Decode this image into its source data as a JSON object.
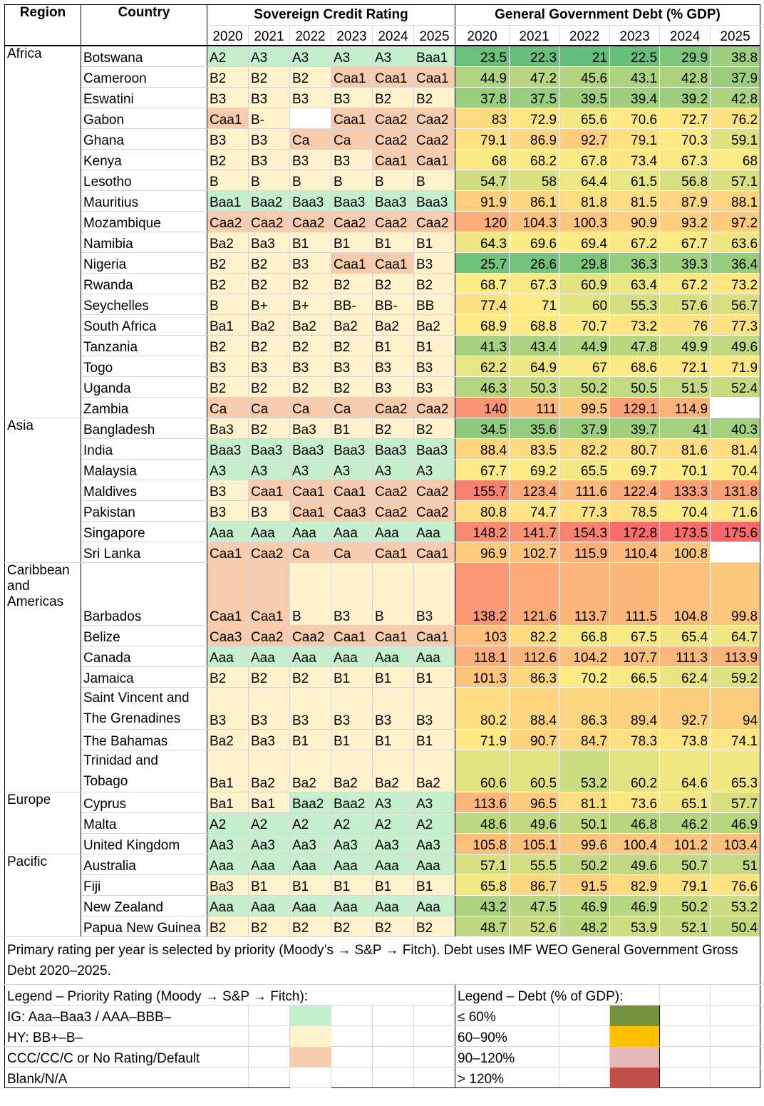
{
  "header": {
    "region": "Region",
    "country": "Country",
    "rating_group": "Sovereign Credit Rating",
    "debt_group": "General Government Debt (% GDP)",
    "rating_years": [
      "2020",
      "2021",
      "2022",
      "2023",
      "2024",
      "2025"
    ],
    "debt_years": [
      "2020",
      "2021",
      "2022",
      "2023",
      "2024",
      "2025"
    ]
  },
  "colors": {
    "ig": "#c6efce",
    "hy": "#fff2cc",
    "ccc": "#f8cbad",
    "debt_scale_min": "#63be7b",
    "debt_scale_mid": "#ffeb84",
    "debt_scale_max": "#f8696b"
  },
  "regions": [
    {
      "name": "Africa",
      "rows": [
        {
          "country": "Botswana",
          "ratings": [
            "A2",
            "A3",
            "A3",
            "A3",
            "A3",
            "Baa1"
          ],
          "debt": [
            "23.5",
            "22.3",
            "21",
            "22.5",
            "29.9",
            "38.8"
          ]
        },
        {
          "country": "Cameroon",
          "ratings": [
            "B2",
            "B2",
            "B2",
            "Caa1",
            "Caa1",
            "Caa1"
          ],
          "debt": [
            "44.9",
            "47.2",
            "45.6",
            "43.1",
            "42.8",
            "37.9"
          ]
        },
        {
          "country": "Eswatini",
          "ratings": [
            "B3",
            "B3",
            "B3",
            "B3",
            "B2",
            "B2"
          ],
          "debt": [
            "37.8",
            "37.5",
            "39.5",
            "39.4",
            "39.2",
            "42.8"
          ]
        },
        {
          "country": "Gabon",
          "ratings": [
            "Caa1",
            "B-",
            "",
            "Caa1",
            "Caa2",
            "Caa2"
          ],
          "debt": [
            "83",
            "72.9",
            "65.6",
            "70.6",
            "72.7",
            "76.2"
          ]
        },
        {
          "country": "Ghana",
          "ratings": [
            "B3",
            "B3",
            "Ca",
            "Ca",
            "Caa2",
            "Caa2"
          ],
          "debt": [
            "79.1",
            "86.9",
            "92.7",
            "79.1",
            "70.3",
            "59.1"
          ]
        },
        {
          "country": "Kenya",
          "ratings": [
            "B2",
            "B3",
            "B3",
            "B3",
            "Caa1",
            "Caa1"
          ],
          "debt": [
            "68",
            "68.2",
            "67.8",
            "73.4",
            "67.3",
            "68"
          ]
        },
        {
          "country": "Lesotho",
          "ratings": [
            "B",
            "B",
            "B",
            "B",
            "B",
            "B"
          ],
          "debt": [
            "54.7",
            "58",
            "64.4",
            "61.5",
            "56.8",
            "57.1"
          ]
        },
        {
          "country": "Mauritius",
          "ratings": [
            "Baa1",
            "Baa2",
            "Baa3",
            "Baa3",
            "Baa3",
            "Baa3"
          ],
          "debt": [
            "91.9",
            "86.1",
            "81.8",
            "81.5",
            "87.9",
            "88.1"
          ]
        },
        {
          "country": "Mozambique",
          "ratings": [
            "Caa2",
            "Caa2",
            "Caa2",
            "Caa2",
            "Caa2",
            "Caa2"
          ],
          "debt": [
            "120",
            "104.3",
            "100.3",
            "90.9",
            "93.2",
            "97.2"
          ]
        },
        {
          "country": "Namibia",
          "ratings": [
            "Ba2",
            "Ba3",
            "B1",
            "B1",
            "B1",
            "B1"
          ],
          "debt": [
            "64.3",
            "69.6",
            "69.4",
            "67.2",
            "67.7",
            "63.6"
          ]
        },
        {
          "country": "Nigeria",
          "ratings": [
            "B2",
            "B2",
            "B3",
            "Caa1",
            "Caa1",
            "B3"
          ],
          "debt": [
            "25.7",
            "26.6",
            "29.8",
            "36.3",
            "39.3",
            "36.4"
          ]
        },
        {
          "country": "Rwanda",
          "ratings": [
            "B2",
            "B2",
            "B2",
            "B2",
            "B2",
            "B2"
          ],
          "debt": [
            "68.7",
            "67.3",
            "60.9",
            "63.4",
            "67.2",
            "73.2"
          ]
        },
        {
          "country": "Seychelles",
          "ratings": [
            "B",
            "B+",
            "B+",
            "BB-",
            "BB-",
            "BB"
          ],
          "debt": [
            "77.4",
            "71",
            "60",
            "55.3",
            "57.6",
            "56.7"
          ]
        },
        {
          "country": "South Africa",
          "ratings": [
            "Ba1",
            "Ba2",
            "Ba2",
            "Ba2",
            "Ba2",
            "Ba2"
          ],
          "debt": [
            "68.9",
            "68.8",
            "70.7",
            "73.2",
            "76",
            "77.3"
          ]
        },
        {
          "country": "Tanzania",
          "ratings": [
            "B2",
            "B2",
            "B2",
            "B2",
            "B1",
            "B1"
          ],
          "debt": [
            "41.3",
            "43.4",
            "44.9",
            "47.8",
            "49.9",
            "49.6"
          ]
        },
        {
          "country": "Togo",
          "ratings": [
            "B3",
            "B3",
            "B3",
            "B3",
            "B3",
            "B3"
          ],
          "debt": [
            "62.2",
            "64.9",
            "67",
            "68.6",
            "72.1",
            "71.9"
          ]
        },
        {
          "country": "Uganda",
          "ratings": [
            "B2",
            "B2",
            "B2",
            "B2",
            "B3",
            "B3"
          ],
          "debt": [
            "46.3",
            "50.3",
            "50.2",
            "50.5",
            "51.5",
            "52.4"
          ]
        },
        {
          "country": "Zambia",
          "ratings": [
            "Ca",
            "Ca",
            "Ca",
            "Ca",
            "Caa2",
            "Caa2"
          ],
          "debt": [
            "140",
            "111",
            "99.5",
            "129.1",
            "114.9",
            ""
          ]
        }
      ]
    },
    {
      "name": "Asia",
      "rows": [
        {
          "country": "Bangladesh",
          "ratings": [
            "Ba3",
            "B2",
            "Ba3",
            "B1",
            "B2",
            "B2"
          ],
          "debt": [
            "34.5",
            "35.6",
            "37.9",
            "39.7",
            "41",
            "40.3"
          ]
        },
        {
          "country": "India",
          "ratings": [
            "Baa3",
            "Baa3",
            "Baa3",
            "Baa3",
            "Baa3",
            "Baa3"
          ],
          "debt": [
            "88.4",
            "83.5",
            "82.2",
            "80.7",
            "81.6",
            "81.4"
          ]
        },
        {
          "country": "Malaysia",
          "ratings": [
            "A3",
            "A3",
            "A3",
            "A3",
            "A3",
            "A3"
          ],
          "debt": [
            "67.7",
            "69.2",
            "65.5",
            "69.7",
            "70.1",
            "70.4"
          ]
        },
        {
          "country": "Maldives",
          "ratings": [
            "B3",
            "Caa1",
            "Caa1",
            "Caa1",
            "Caa2",
            "Caa2"
          ],
          "debt": [
            "155.7",
            "123.4",
            "111.6",
            "122.4",
            "133.3",
            "131.8"
          ]
        },
        {
          "country": "Pakistan",
          "ratings": [
            "B3",
            "B3",
            "Caa1",
            "Caa3",
            "Caa2",
            "Caa2"
          ],
          "debt": [
            "80.8",
            "74.7",
            "77.3",
            "78.5",
            "70.4",
            "71.6"
          ]
        },
        {
          "country": "Singapore",
          "ratings": [
            "Aaa",
            "Aaa",
            "Aaa",
            "Aaa",
            "Aaa",
            "Aaa"
          ],
          "debt": [
            "148.2",
            "141.7",
            "154.3",
            "172.8",
            "173.5",
            "175.6"
          ]
        },
        {
          "country": "Sri Lanka",
          "ratings": [
            "Caa1",
            "Caa2",
            "Ca",
            "Ca",
            "Caa1",
            "Caa1"
          ],
          "debt": [
            "96.9",
            "102.7",
            "115.9",
            "110.4",
            "100.8",
            ""
          ]
        }
      ]
    },
    {
      "name": "Caribbean and Americas",
      "rows": [
        {
          "country": "Barbados",
          "ratings": [
            "Caa1",
            "Caa1",
            "B",
            "B3",
            "B",
            "B3"
          ],
          "debt": [
            "138.2",
            "121.6",
            "113.7",
            "111.5",
            "104.8",
            "99.8"
          ]
        },
        {
          "country": "Belize",
          "ratings": [
            "Caa3",
            "Caa2",
            "Caa2",
            "Caa1",
            "Caa1",
            "Caa1"
          ],
          "debt": [
            "103",
            "82.2",
            "66.8",
            "67.5",
            "65.4",
            "64.7"
          ]
        },
        {
          "country": "Canada",
          "ratings": [
            "Aaa",
            "Aaa",
            "Aaa",
            "Aaa",
            "Aaa",
            "Aaa"
          ],
          "debt": [
            "118.1",
            "112.6",
            "104.2",
            "107.7",
            "111.3",
            "113.9"
          ]
        },
        {
          "country": "Jamaica",
          "ratings": [
            "B2",
            "B2",
            "B2",
            "B1",
            "B1",
            "B1"
          ],
          "debt": [
            "101.3",
            "86.3",
            "70.2",
            "66.5",
            "62.4",
            "59.2"
          ]
        },
        {
          "country": "Saint Vincent and The Grenadines",
          "ratings": [
            "B3",
            "B3",
            "B3",
            "B3",
            "B3",
            "B3"
          ],
          "debt": [
            "80.2",
            "88.4",
            "86.3",
            "89.4",
            "92.7",
            "94"
          ]
        },
        {
          "country": "The Bahamas",
          "ratings": [
            "Ba2",
            "Ba3",
            "B1",
            "B1",
            "B1",
            "B1"
          ],
          "debt": [
            "71.9",
            "90.7",
            "84.7",
            "78.3",
            "73.8",
            "74.1"
          ]
        },
        {
          "country": "Trinidad and Tobago",
          "ratings": [
            "Ba1",
            "Ba2",
            "Ba2",
            "Ba2",
            "Ba2",
            "Ba2"
          ],
          "debt": [
            "60.6",
            "60.5",
            "53.2",
            "60.2",
            "64.6",
            "65.3"
          ]
        }
      ]
    },
    {
      "name": "Europe",
      "rows": [
        {
          "country": "Cyprus",
          "ratings": [
            "Ba1",
            "Ba1",
            "Baa2",
            "Baa2",
            "A3",
            "A3"
          ],
          "debt": [
            "113.6",
            "96.5",
            "81.1",
            "73.6",
            "65.1",
            "57.7"
          ]
        },
        {
          "country": "Malta",
          "ratings": [
            "A2",
            "A2",
            "A2",
            "A2",
            "A2",
            "A2"
          ],
          "debt": [
            "48.6",
            "49.6",
            "50.1",
            "46.8",
            "46.2",
            "46.9"
          ]
        },
        {
          "country": "United Kingdom",
          "ratings": [
            "Aa3",
            "Aa3",
            "Aa3",
            "Aa3",
            "Aa3",
            "Aa3"
          ],
          "debt": [
            "105.8",
            "105.1",
            "99.6",
            "100.4",
            "101.2",
            "103.4"
          ]
        }
      ]
    },
    {
      "name": "Pacific",
      "rows": [
        {
          "country": "Australia",
          "ratings": [
            "Aaa",
            "Aaa",
            "Aaa",
            "Aaa",
            "Aaa",
            "Aaa"
          ],
          "debt": [
            "57.1",
            "55.5",
            "50.2",
            "49.6",
            "50.7",
            "51"
          ]
        },
        {
          "country": "Fiji",
          "ratings": [
            "Ba3",
            "B1",
            "B1",
            "B1",
            "B1",
            "B1"
          ],
          "debt": [
            "65.8",
            "86.7",
            "91.5",
            "82.9",
            "79.1",
            "76.6"
          ]
        },
        {
          "country": "New Zealand",
          "ratings": [
            "Aaa",
            "Aaa",
            "Aaa",
            "Aaa",
            "Aaa",
            "Aaa"
          ],
          "debt": [
            "43.2",
            "47.5",
            "46.9",
            "46.9",
            "50.2",
            "53.2"
          ]
        },
        {
          "country": "Papua New Guinea",
          "ratings": [
            "B2",
            "B2",
            "B2",
            "B2",
            "B2",
            "B2"
          ],
          "debt": [
            "48.7",
            "52.6",
            "48.2",
            "53.9",
            "52.1",
            "50.4"
          ]
        }
      ]
    }
  ],
  "note": "Primary rating per year is selected by priority (Moody’s → S&P → Fitch). Debt uses IMF WEO General Government Gross Debt 2020–2025.",
  "legend": {
    "rating_title": "Legend – Priority Rating (Moody → S&P → Fitch):",
    "debt_title": "Legend – Debt (% of GDP):",
    "rating_items": [
      {
        "label": "IG: Aaa–Baa3 / AAA–BBB–",
        "color": "#c6efce"
      },
      {
        "label": "HY: BB+–B–",
        "color": "#fff2cc"
      },
      {
        "label": "CCC/CC/C or No Rating/Default",
        "color": "#f8cbad"
      },
      {
        "label": "Blank/N/A",
        "color": "#ffffff"
      }
    ],
    "debt_items": [
      {
        "label": "≤ 60%",
        "color": "#76923c"
      },
      {
        "label": "60–90%",
        "color": "#ffc000"
      },
      {
        "label": "90–120%",
        "color": "#e6b8b7"
      },
      {
        "label": "> 120%",
        "color": "#c0504d"
      }
    ]
  }
}
